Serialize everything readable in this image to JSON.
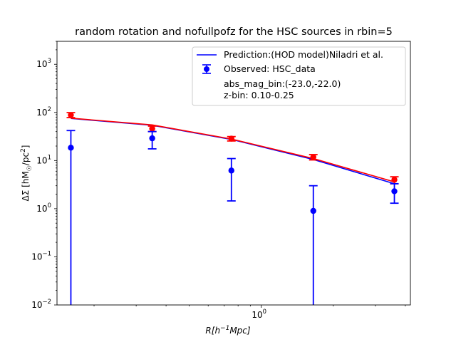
{
  "chart_data": {
    "type": "line",
    "title": "random rotation and nofullpofz for the HSC sources in rbin=5",
    "xlabel_main": "R[h",
    "xlabel_sup": "−1",
    "xlabel_tail": "Mpc]",
    "ylabel_main": "ΔΣ [hM",
    "ylabel_sub": "☉",
    "ylabel_mid": "/pc",
    "ylabel_sup": "2",
    "ylabel_tail": "]",
    "xscale": "log",
    "yscale": "log",
    "xlim": [
      0.14,
      4.2
    ],
    "ylim": [
      0.01,
      3000
    ],
    "x_tick_labels": [
      {
        "value": 1,
        "base": "10",
        "exp": "0"
      }
    ],
    "y_tick_labels": [
      {
        "value": 0.01,
        "base": "10",
        "exp": "−2"
      },
      {
        "value": 0.1,
        "base": "10",
        "exp": "−1"
      },
      {
        "value": 1,
        "base": "10",
        "exp": "0"
      },
      {
        "value": 10,
        "base": "10",
        "exp": "1"
      },
      {
        "value": 100,
        "base": "10",
        "exp": "2"
      },
      {
        "value": 1000,
        "base": "10",
        "exp": "3"
      }
    ],
    "series": [
      {
        "name": "Prediction:(HOD model)Niladri et al.",
        "kind": "line",
        "color": "#0000ff",
        "x": [
          0.16,
          0.35,
          0.75,
          1.65,
          3.6
        ],
        "y": [
          75,
          54,
          27.5,
          10.5,
          3.3
        ]
      },
      {
        "kind": "line",
        "color": "#ff0000",
        "x": [
          0.16,
          0.35,
          0.75,
          1.65,
          3.6
        ],
        "y": [
          76,
          55,
          28,
          11,
          3.6
        ]
      },
      {
        "kind": "errorbar",
        "color": "#ff0000",
        "x": [
          0.16,
          0.35,
          0.75,
          1.65,
          3.6
        ],
        "y": [
          88,
          46,
          28.5,
          11.8,
          4.0
        ],
        "ylow": [
          78,
          40,
          25.5,
          10.3,
          3.3
        ],
        "yhigh": [
          99,
          52,
          31.5,
          13.3,
          4.6
        ]
      },
      {
        "name": "Observed: HSC_data",
        "kind": "errorbar",
        "color": "#0000ff",
        "x": [
          0.16,
          0.35,
          0.75,
          1.65,
          3.6
        ],
        "y": [
          18.5,
          29,
          6.2,
          0.9,
          2.3
        ],
        "ylow": [
          0.001,
          17.5,
          1.45,
          0.001,
          1.3
        ],
        "yhigh": [
          42,
          40,
          11,
          3.0,
          3.3
        ]
      }
    ],
    "legend": {
      "placement": "top-right",
      "extra_lines": [
        "abs_mag_bin:(-23.0,-22.0)",
        "z-bin: 0.10-0.25"
      ]
    }
  }
}
